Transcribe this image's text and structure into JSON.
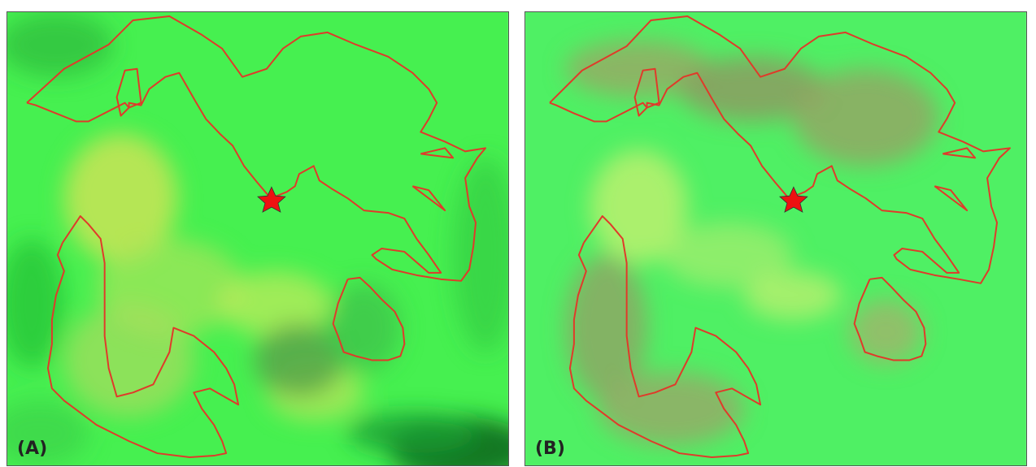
{
  "panels": [
    {
      "label": "(A)",
      "background_color": "#46f050",
      "boundary_color": "#e03a2a",
      "marker_color": "#ee1111"
    },
    {
      "label": "(B)",
      "background_color": "#4ff064",
      "boundary_color": "#e03a2a",
      "marker_color": "#ee1111"
    }
  ]
}
